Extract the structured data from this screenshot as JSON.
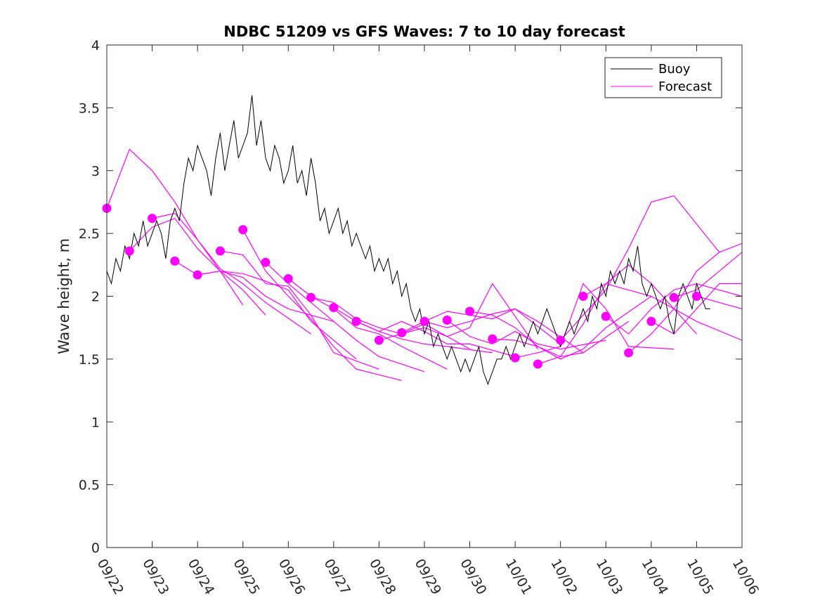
{
  "chart_data": {
    "type": "line",
    "title": "NDBC 51209 vs GFS Waves: 7 to 10 day forecast",
    "xlabel": "",
    "ylabel": "Wave height, m",
    "xlim": [
      0,
      14
    ],
    "ylim": [
      0,
      4
    ],
    "yticks": [
      0,
      0.5,
      1,
      1.5,
      2,
      2.5,
      3,
      3.5,
      4
    ],
    "ytick_labels": [
      "0",
      "0.5",
      "1",
      "1.5",
      "2",
      "2.5",
      "3",
      "3.5",
      "4"
    ],
    "xtick_labels": [
      "09/22",
      "09/23",
      "09/24",
      "09/25",
      "09/26",
      "09/27",
      "09/28",
      "09/29",
      "09/30",
      "10/01",
      "10/02",
      "10/03",
      "10/04",
      "10/05",
      "10/06"
    ],
    "colors": {
      "buoy": "#000000",
      "forecast": "#ff00ff",
      "axis": "#262626"
    },
    "legend": {
      "position": "top-right",
      "entries": [
        {
          "label": "Buoy",
          "color": "#000000"
        },
        {
          "label": "Forecast",
          "color": "#ff00ff"
        }
      ]
    },
    "buoy": {
      "name": "Buoy",
      "x": [
        0,
        0.1,
        0.2,
        0.3,
        0.4,
        0.5,
        0.6,
        0.7,
        0.8,
        0.9,
        1.0,
        1.1,
        1.2,
        1.3,
        1.4,
        1.5,
        1.6,
        1.7,
        1.8,
        1.9,
        2.0,
        2.1,
        2.2,
        2.3,
        2.4,
        2.5,
        2.6,
        2.7,
        2.8,
        2.9,
        3.0,
        3.1,
        3.2,
        3.3,
        3.4,
        3.5,
        3.6,
        3.7,
        3.8,
        3.9,
        4.0,
        4.1,
        4.2,
        4.3,
        4.4,
        4.5,
        4.6,
        4.7,
        4.8,
        4.9,
        5.0,
        5.1,
        5.2,
        5.3,
        5.4,
        5.5,
        5.6,
        5.7,
        5.8,
        5.9,
        6.0,
        6.1,
        6.2,
        6.3,
        6.4,
        6.5,
        6.6,
        6.7,
        6.8,
        6.9,
        7.0,
        7.1,
        7.2,
        7.3,
        7.4,
        7.5,
        7.6,
        7.7,
        7.8,
        7.9,
        8.0,
        8.1,
        8.2,
        8.3,
        8.4,
        8.5,
        8.6,
        8.7,
        8.8,
        8.9,
        9.0,
        9.1,
        9.2,
        9.3,
        9.4,
        9.5,
        9.6,
        9.7,
        9.8,
        9.9,
        10.0,
        10.1,
        10.2,
        10.3,
        10.4,
        10.5,
        10.6,
        10.7,
        10.8,
        10.9,
        11.0,
        11.1,
        11.2,
        11.3,
        11.4,
        11.5,
        11.6,
        11.7,
        11.8,
        11.9,
        12.0,
        12.1,
        12.2,
        12.3,
        12.4,
        12.5,
        12.6,
        12.7,
        12.8,
        12.9,
        13.0,
        13.1,
        13.2,
        13.3
      ],
      "y": [
        2.2,
        2.1,
        2.3,
        2.2,
        2.4,
        2.3,
        2.5,
        2.4,
        2.6,
        2.4,
        2.5,
        2.6,
        2.5,
        2.3,
        2.6,
        2.7,
        2.6,
        2.9,
        3.1,
        3.0,
        3.2,
        3.1,
        3.0,
        2.8,
        3.1,
        3.3,
        3.0,
        3.2,
        3.4,
        3.1,
        3.2,
        3.3,
        3.6,
        3.2,
        3.4,
        3.1,
        3.0,
        3.2,
        3.1,
        2.9,
        3.0,
        3.2,
        2.9,
        3.0,
        2.8,
        3.1,
        2.9,
        2.6,
        2.7,
        2.5,
        2.6,
        2.7,
        2.5,
        2.6,
        2.4,
        2.5,
        2.4,
        2.3,
        2.4,
        2.2,
        2.3,
        2.2,
        2.3,
        2.1,
        2.2,
        2.0,
        2.1,
        1.9,
        1.8,
        1.9,
        1.7,
        1.8,
        1.6,
        1.7,
        1.6,
        1.5,
        1.6,
        1.5,
        1.4,
        1.5,
        1.4,
        1.5,
        1.6,
        1.4,
        1.3,
        1.4,
        1.5,
        1.5,
        1.6,
        1.5,
        1.6,
        1.7,
        1.6,
        1.7,
        1.8,
        1.7,
        1.8,
        1.9,
        1.8,
        1.7,
        1.6,
        1.7,
        1.8,
        1.7,
        1.8,
        1.9,
        1.8,
        2.0,
        1.9,
        2.1,
        2.0,
        2.2,
        2.1,
        2.2,
        2.1,
        2.3,
        2.2,
        2.4,
        2.1,
        2.0,
        2.1,
        2.0,
        1.9,
        2.0,
        1.8,
        1.7,
        2.0,
        2.1,
        2.0,
        1.9,
        2.1,
        2.0,
        1.9,
        1.9
      ]
    },
    "forecast_series": [
      {
        "name": "Forecast",
        "x": [
          0.0,
          0.5,
          1.0,
          1.5,
          2.0,
          2.5,
          3.0
        ],
        "y": [
          2.7,
          3.17,
          3.0,
          2.75,
          2.45,
          2.2,
          1.93
        ]
      },
      {
        "name": "Forecast",
        "x": [
          0.5,
          1.0,
          1.5,
          2.0,
          2.5,
          3.0,
          3.5
        ],
        "y": [
          2.36,
          2.55,
          2.62,
          2.38,
          2.2,
          2.05,
          1.85
        ]
      },
      {
        "name": "Forecast",
        "x": [
          1.0,
          1.5,
          2.0,
          2.5,
          3.0,
          3.5,
          4.5
        ],
        "y": [
          2.62,
          2.66,
          2.45,
          2.22,
          2.1,
          1.95,
          1.7
        ]
      },
      {
        "name": "Forecast",
        "x": [
          1.5,
          2.0,
          2.5,
          3.0,
          3.5,
          4.0,
          5.0
        ],
        "y": [
          2.28,
          2.17,
          2.2,
          2.15,
          2.0,
          1.9,
          1.8
        ]
      },
      {
        "name": "Forecast",
        "x": [
          2.0,
          2.5,
          3.0,
          3.5,
          4.0,
          4.5,
          5.5
        ],
        "y": [
          2.17,
          2.2,
          2.18,
          2.12,
          2.05,
          1.8,
          1.5
        ]
      },
      {
        "name": "Forecast",
        "x": [
          2.5,
          3.0,
          3.5,
          4.0,
          4.5,
          5.0,
          6.0
        ],
        "y": [
          2.36,
          2.33,
          2.1,
          2.08,
          1.85,
          1.55,
          1.42
        ]
      },
      {
        "name": "Forecast",
        "x": [
          3.0,
          3.5,
          4.0,
          4.5,
          5.0,
          5.5,
          6.5
        ],
        "y": [
          2.53,
          2.2,
          2.0,
          1.82,
          1.6,
          1.42,
          1.33
        ]
      },
      {
        "name": "Forecast",
        "x": [
          3.5,
          4.0,
          4.5,
          5.0,
          5.5,
          6.0,
          7.0
        ],
        "y": [
          2.27,
          2.1,
          1.95,
          1.8,
          1.65,
          1.52,
          1.4
        ]
      },
      {
        "name": "Forecast",
        "x": [
          4.0,
          4.5,
          5.0,
          5.5,
          6.0,
          6.5,
          7.5
        ],
        "y": [
          2.14,
          2.0,
          1.9,
          1.75,
          1.7,
          1.6,
          1.42
        ]
      },
      {
        "name": "Forecast",
        "x": [
          4.5,
          5.0,
          5.5,
          6.0,
          6.5,
          7.0,
          8.0
        ],
        "y": [
          1.99,
          1.95,
          1.82,
          1.75,
          1.7,
          1.78,
          1.58
        ]
      },
      {
        "name": "Forecast",
        "x": [
          5.0,
          5.5,
          6.0,
          6.5,
          7.0,
          7.5,
          8.5
        ],
        "y": [
          1.91,
          1.8,
          1.72,
          1.66,
          1.62,
          1.6,
          1.55
        ]
      },
      {
        "name": "Forecast",
        "x": [
          5.5,
          6.0,
          6.5,
          7.0,
          7.5,
          8.0,
          9.0
        ],
        "y": [
          1.8,
          1.72,
          1.8,
          1.72,
          1.62,
          1.62,
          1.52
        ]
      },
      {
        "name": "Forecast",
        "x": [
          6.0,
          6.5,
          7.0,
          7.5,
          8.0,
          8.5,
          9.5
        ],
        "y": [
          1.65,
          1.7,
          1.75,
          1.68,
          1.75,
          2.1,
          1.58
        ]
      },
      {
        "name": "Forecast",
        "x": [
          6.5,
          7.0,
          7.5,
          8.0,
          8.5,
          9.0,
          10.0
        ],
        "y": [
          1.71,
          1.8,
          1.88,
          1.85,
          1.82,
          1.9,
          1.62
        ]
      },
      {
        "name": "Forecast",
        "x": [
          7.0,
          7.5,
          8.0,
          8.5,
          9.0,
          9.5,
          10.5
        ],
        "y": [
          1.8,
          1.75,
          1.8,
          1.86,
          1.9,
          1.8,
          1.55
        ]
      },
      {
        "name": "Forecast",
        "x": [
          7.5,
          8.0,
          8.5,
          9.0,
          9.5,
          10.0,
          11.0
        ],
        "y": [
          1.81,
          1.68,
          1.62,
          1.72,
          1.62,
          1.58,
          1.65
        ]
      },
      {
        "name": "Forecast",
        "x": [
          8.0,
          8.5,
          9.0,
          9.5,
          10.0,
          10.5,
          11.5
        ],
        "y": [
          1.88,
          1.85,
          1.75,
          1.6,
          1.52,
          1.55,
          1.8
        ]
      },
      {
        "name": "Forecast",
        "x": [
          8.5,
          9.0,
          9.5,
          10.0,
          10.5,
          11.0,
          12.0
        ],
        "y": [
          1.66,
          1.65,
          1.6,
          1.5,
          1.58,
          1.75,
          2.0
        ]
      },
      {
        "name": "Forecast",
        "x": [
          9.0,
          9.5,
          10.0,
          10.5,
          11.0,
          11.5,
          12.5
        ],
        "y": [
          1.51,
          1.55,
          1.6,
          2.1,
          1.9,
          1.6,
          1.58
        ]
      },
      {
        "name": "Forecast",
        "x": [
          9.5,
          10.0,
          10.5,
          11.0,
          11.5,
          12.0,
          13.0
        ],
        "y": [
          1.46,
          1.52,
          1.78,
          2.1,
          2.25,
          2.1,
          1.7
        ]
      },
      {
        "name": "Forecast",
        "x": [
          10.0,
          10.5,
          11.0,
          11.5,
          12.0,
          12.5,
          13.5
        ],
        "y": [
          1.65,
          1.85,
          2.05,
          2.38,
          2.75,
          2.8,
          2.35
        ]
      },
      {
        "name": "Forecast",
        "x": [
          10.5,
          11.0,
          11.5,
          12.0,
          12.5,
          13.0,
          14.0
        ],
        "y": [
          2.0,
          2.1,
          2.05,
          2.0,
          1.9,
          1.8,
          1.65
        ]
      },
      {
        "name": "Forecast",
        "x": [
          11.0,
          11.5,
          12.0,
          12.5,
          13.0,
          13.5,
          14.0
        ],
        "y": [
          1.84,
          1.7,
          1.9,
          2.05,
          2.1,
          2.05,
          2.0
        ]
      },
      {
        "name": "Forecast",
        "x": [
          11.5,
          12.0,
          12.5,
          13.0,
          13.5,
          14.0
        ],
        "y": [
          1.55,
          1.7,
          1.9,
          2.2,
          2.35,
          2.42
        ]
      },
      {
        "name": "Forecast",
        "x": [
          12.0,
          12.5,
          13.0,
          13.5,
          14.0
        ],
        "y": [
          1.8,
          1.7,
          1.9,
          2.1,
          2.1
        ]
      },
      {
        "name": "Forecast",
        "x": [
          12.5,
          13.0,
          13.5,
          14.0
        ],
        "y": [
          1.99,
          2.05,
          2.2,
          2.35
        ]
      },
      {
        "name": "Forecast",
        "x": [
          13.0,
          13.5,
          14.0
        ],
        "y": [
          2.0,
          1.95,
          1.9
        ]
      }
    ],
    "forecast_markers": {
      "name": "Forecast",
      "x": [
        0.0,
        0.5,
        1.0,
        1.5,
        2.0,
        2.5,
        3.0,
        3.5,
        4.0,
        4.5,
        5.0,
        5.5,
        6.0,
        6.5,
        7.0,
        7.5,
        8.0,
        8.5,
        9.0,
        9.5,
        10.0,
        10.5,
        11.0,
        11.5,
        12.0,
        12.5,
        13.0
      ],
      "y": [
        2.7,
        2.36,
        2.62,
        2.28,
        2.17,
        2.36,
        2.53,
        2.27,
        2.14,
        1.99,
        1.91,
        1.8,
        1.65,
        1.71,
        1.8,
        1.81,
        1.88,
        1.66,
        1.51,
        1.46,
        1.65,
        2.0,
        1.84,
        1.55,
        1.8,
        1.99,
        2.0
      ]
    }
  }
}
